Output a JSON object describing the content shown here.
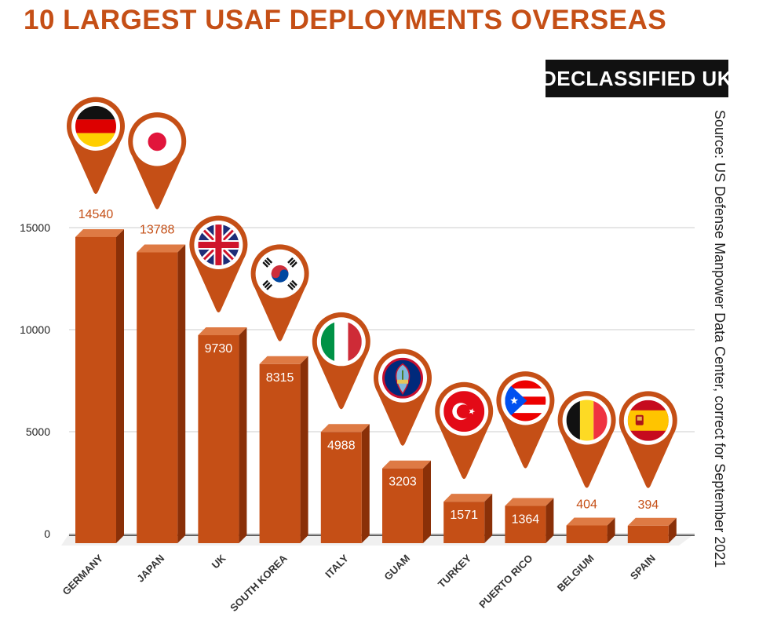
{
  "header": {
    "title": "10 LARGEST USAF DEPLOYMENTS OVERSEAS",
    "brand": "DECLASSIFIED UK",
    "source": "Source: US Defense Manpower Data Center, correct for September 2021"
  },
  "colors": {
    "title": "#c54f16",
    "bar_front": "#c54f16",
    "bar_side": "#8a3008",
    "bar_top": "#de7a44",
    "grid": "#cccccc",
    "brand_bg": "#111111"
  },
  "chart_data": {
    "type": "bar",
    "title": "10 LARGEST USAF DEPLOYMENTS OVERSEAS",
    "xlabel": "",
    "ylabel": "",
    "categories": [
      "GERMANY",
      "JAPAN",
      "UK",
      "SOUTH KOREA",
      "ITALY",
      "GUAM",
      "TURKEY",
      "PUERTO RICO",
      "BELGIUM",
      "SPAIN"
    ],
    "values": [
      14540,
      13788,
      9730,
      8315,
      4988,
      3203,
      1571,
      1364,
      404,
      394
    ],
    "data_labels": [
      "14540",
      "13788",
      "9730",
      "8315",
      "4988",
      "3203",
      "1571",
      "1364",
      "404",
      "394"
    ],
    "flag_icons": [
      "germany-flag-icon",
      "japan-flag-icon",
      "uk-flag-icon",
      "south-korea-flag-icon",
      "italy-flag-icon",
      "guam-flag-icon",
      "turkey-flag-icon",
      "puerto-rico-flag-icon",
      "belgium-flag-icon",
      "spain-flag-icon"
    ],
    "yticks": [
      0,
      5000,
      10000,
      15000
    ],
    "ytick_labels": [
      "0",
      "5000",
      "10000",
      "15000"
    ],
    "ylim": [
      0,
      15000
    ],
    "grid": true,
    "style": "3d-bar-with-flag-pins"
  }
}
